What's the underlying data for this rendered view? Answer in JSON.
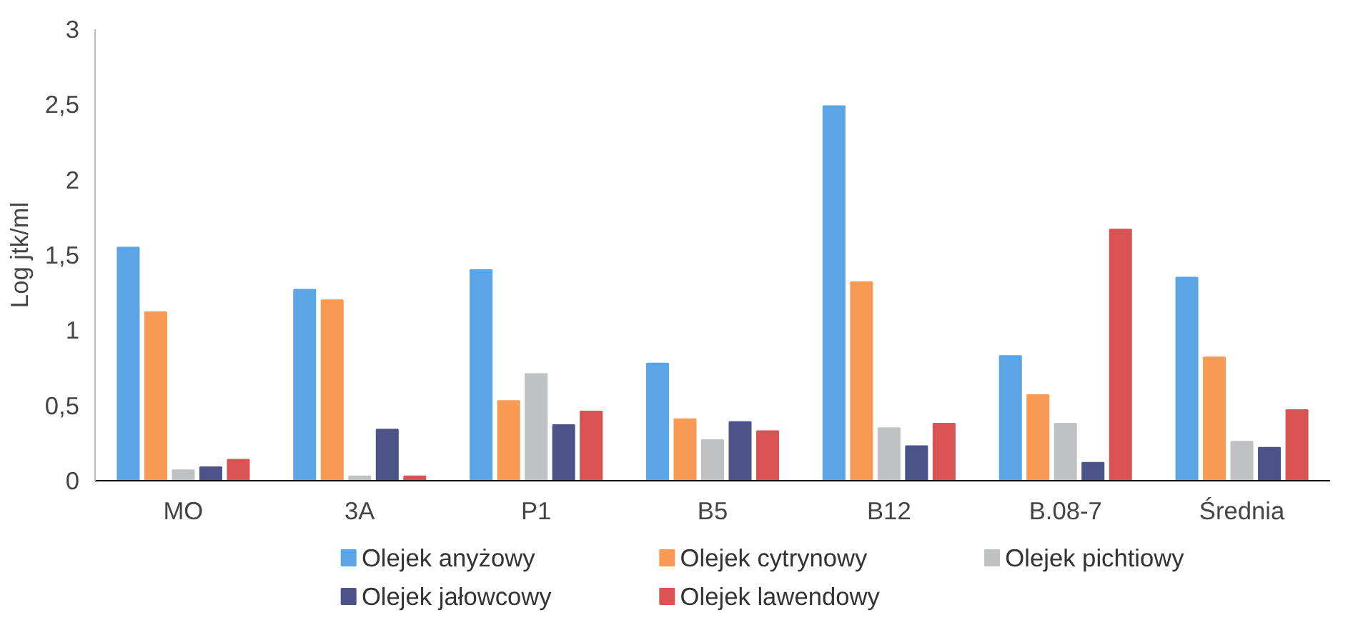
{
  "chart_data": {
    "type": "bar",
    "ylabel": "Log jtk/ml",
    "categories": [
      "MO",
      "3A",
      "P1",
      "B5",
      "B12",
      "B.08-7",
      "Średnia"
    ],
    "series": [
      {
        "name": "Olejek anyżowy",
        "color": "#5aa5e6",
        "values": [
          1.55,
          1.27,
          1.4,
          0.78,
          2.49,
          0.83,
          1.35
        ]
      },
      {
        "name": "Olejek cytrynowy",
        "color": "#f79a55",
        "values": [
          1.12,
          1.2,
          0.53,
          0.41,
          1.32,
          0.57,
          0.82
        ]
      },
      {
        "name": "Olejek pichtiowy",
        "color": "#bfc1c3",
        "values": [
          0.07,
          0.03,
          0.71,
          0.27,
          0.35,
          0.38,
          0.26
        ]
      },
      {
        "name": "Olejek jałowcowy",
        "color": "#4b5389",
        "values": [
          0.09,
          0.34,
          0.37,
          0.39,
          0.23,
          0.12,
          0.22
        ]
      },
      {
        "name": "Olejek lawendowy",
        "color": "#d95352",
        "values": [
          0.14,
          0.03,
          0.46,
          0.33,
          0.38,
          1.67,
          0.47
        ]
      }
    ],
    "ylim": [
      0,
      3
    ],
    "yticks": [
      0,
      {
        "value": 0.5,
        "label": "0,5"
      },
      1,
      {
        "value": 1.5,
        "label": "1,5"
      },
      2,
      {
        "value": 2.5,
        "label": "2,5"
      },
      3
    ],
    "grid": false,
    "legend": "bottom"
  }
}
